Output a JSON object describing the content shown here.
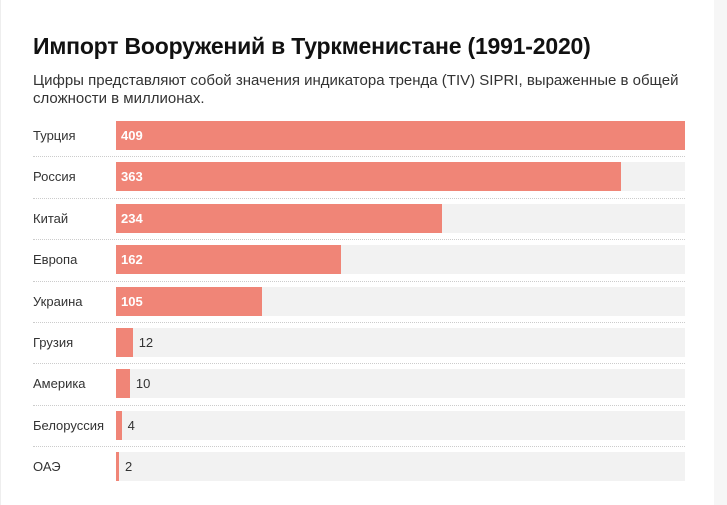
{
  "header": {
    "title": "Импорт Вооружений в Туркменистане (1991-2020)",
    "subtitle": "Цифры представляют собой значения индикатора тренда (TIV) SIPRI, выраженные в общей сложности в миллионах."
  },
  "colors": {
    "bar": "#f08577",
    "track": "#f2f2f2"
  },
  "chart_data": {
    "type": "bar",
    "orientation": "horizontal",
    "title": "Импорт Вооружений в Туркменистане (1991-2020)",
    "categories": [
      "Турция",
      "Россия",
      "Китай",
      "Европа",
      "Украина",
      "Грузия",
      "Америка",
      "Белоруссия",
      "ОАЭ"
    ],
    "values": [
      409,
      363,
      234,
      162,
      105,
      12,
      10,
      4,
      2
    ],
    "xlim": [
      0,
      409
    ],
    "grid": false
  }
}
